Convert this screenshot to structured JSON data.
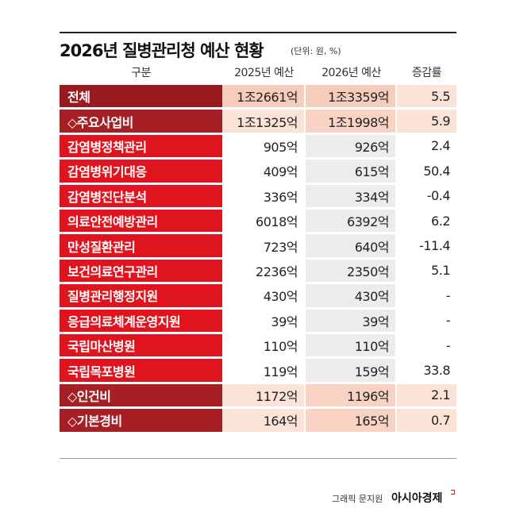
{
  "header": {
    "title": "2026년 질병관리청 예산 현황",
    "unit": "(단위: 원, %)"
  },
  "table": {
    "columns": [
      "구분",
      "2025년 예산",
      "2026년 예산",
      "증감률"
    ],
    "rows": [
      [
        "전체",
        "1조2661억",
        "1조3359억",
        "5.5"
      ],
      [
        "◇주요사업비",
        "1조1325억",
        "1조1998억",
        "5.9"
      ],
      [
        "감염병정책관리",
        "905억",
        "926억",
        "2.4"
      ],
      [
        "감염병위기대응",
        "409억",
        "615억",
        "50.4"
      ],
      [
        "감염병진단분석",
        "336억",
        "334억",
        "-0.4"
      ],
      [
        "의료안전예방관리",
        "6018억",
        "6392억",
        "6.2"
      ],
      [
        "만성질환관리",
        "723억",
        "640억",
        "-11.4"
      ],
      [
        "보건의료연구관리",
        "2236억",
        "2350억",
        "5.1"
      ],
      [
        "질병관리행정지원",
        "430억",
        "430억",
        "-"
      ],
      [
        "응급의료체계운영지원",
        "39억",
        "39억",
        "-"
      ],
      [
        "국립마산병원",
        "110억",
        "110억",
        "-"
      ],
      [
        "국립목포병원",
        "119억",
        "159억",
        "33.8"
      ],
      [
        "◇인건비",
        "1172억",
        "1196억",
        "2.1"
      ],
      [
        "◇기본경비",
        "164억",
        "165억",
        "0.7"
      ]
    ]
  },
  "footer": {
    "credit": "그래픽 문지원",
    "brand": "아시아경제"
  }
}
